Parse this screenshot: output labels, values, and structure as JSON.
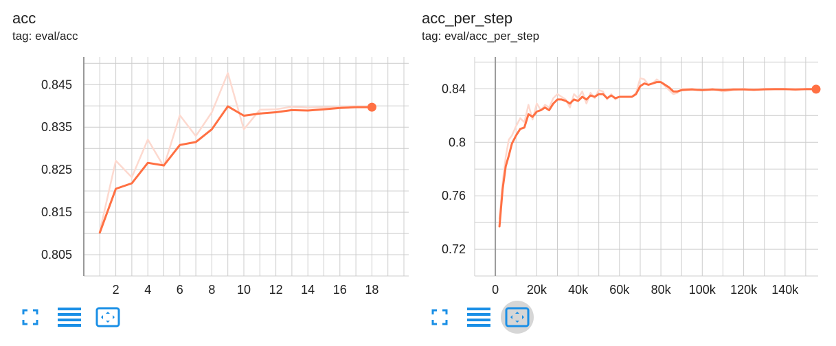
{
  "colors": {
    "accent": "#ff7043",
    "raw_line": "#fdd9cf",
    "grid": "#cccccc",
    "axis": "#999999",
    "icon": "#1a8fe6"
  },
  "charts": [
    {
      "title": "acc",
      "tag": "tag: eval/acc",
      "toolbar": {
        "icons": [
          "fullscreen-icon",
          "data-table-icon",
          "fit-domain-icon"
        ],
        "active_index": -1
      }
    },
    {
      "title": "acc_per_step",
      "tag": "tag: eval/acc_per_step",
      "toolbar": {
        "icons": [
          "fullscreen-icon",
          "data-table-icon",
          "fit-domain-icon"
        ],
        "active_index": 2
      }
    }
  ],
  "chart_data": [
    {
      "type": "line",
      "title": "acc",
      "xlabel": "",
      "ylabel": "",
      "xlim": [
        0,
        20.3
      ],
      "ylim": [
        0.8,
        0.8515
      ],
      "x_ticks": [
        2,
        4,
        6,
        8,
        10,
        12,
        14,
        16,
        18
      ],
      "x_tick_labels": [
        "2",
        "4",
        "6",
        "8",
        "10",
        "12",
        "14",
        "16",
        "18"
      ],
      "y_ticks": [
        0.805,
        0.815,
        0.825,
        0.835,
        0.845
      ],
      "y_tick_labels": [
        "0.805",
        "0.815",
        "0.825",
        "0.835",
        "0.845"
      ],
      "grid": true,
      "series": [
        {
          "role": "raw",
          "x": [
            1,
            2,
            3,
            4,
            5,
            6,
            7,
            8,
            9,
            10,
            11,
            12,
            13,
            14,
            15,
            16,
            17,
            18
          ],
          "values": [
            0.8105,
            0.8271,
            0.8232,
            0.8321,
            0.8257,
            0.8378,
            0.8329,
            0.8385,
            0.8477,
            0.8345,
            0.8391,
            0.8392,
            0.8398,
            0.8396,
            0.8397,
            0.8398,
            0.8399,
            0.8398
          ]
        },
        {
          "role": "smoothed",
          "x": [
            1,
            2,
            3,
            4,
            5,
            6,
            7,
            8,
            9,
            10,
            11,
            12,
            13,
            14,
            15,
            16,
            17,
            18
          ],
          "values": [
            0.8102,
            0.8205,
            0.8218,
            0.8266,
            0.826,
            0.8308,
            0.8315,
            0.8345,
            0.8399,
            0.8377,
            0.8382,
            0.8385,
            0.839,
            0.8389,
            0.8392,
            0.8395,
            0.8397,
            0.8397
          ]
        }
      ]
    },
    {
      "type": "line",
      "title": "acc_per_step",
      "xlabel": "",
      "ylabel": "",
      "xlim": [
        -10000,
        156000
      ],
      "ylim": [
        0.7,
        0.8638
      ],
      "x_ticks": [
        0,
        20000,
        40000,
        60000,
        80000,
        100000,
        120000,
        140000
      ],
      "x_tick_labels": [
        "0",
        "20k",
        "40k",
        "60k",
        "80k",
        "100k",
        "120k",
        "140k"
      ],
      "y_ticks": [
        0.72,
        0.76,
        0.8,
        0.84
      ],
      "y_tick_labels": [
        "0.72",
        "0.76",
        "0.8",
        "0.84"
      ],
      "grid": true,
      "series": [
        {
          "role": "raw",
          "x": [
            2000,
            3500,
            5000,
            6500,
            8000,
            10000,
            12000,
            14000,
            16000,
            18000,
            20000,
            22000,
            24000,
            26000,
            28000,
            30000,
            32000,
            34000,
            36000,
            38000,
            40000,
            42000,
            44000,
            46000,
            48000,
            50000,
            52000,
            54000,
            56000,
            58000,
            60000,
            62000,
            64000,
            66000,
            68000,
            70000,
            72000,
            74000,
            76000,
            78000,
            80000,
            82000,
            84000,
            86000,
            88000,
            90000,
            95000,
            100000,
            105000,
            110000,
            115000,
            120000,
            125000,
            130000,
            135000,
            140000,
            145000,
            150000,
            155000
          ],
          "values": [
            0.743,
            0.77,
            0.789,
            0.802,
            0.805,
            0.812,
            0.818,
            0.815,
            0.828,
            0.817,
            0.829,
            0.824,
            0.828,
            0.826,
            0.833,
            0.836,
            0.834,
            0.832,
            0.826,
            0.836,
            0.833,
            0.838,
            0.829,
            0.837,
            0.833,
            0.839,
            0.838,
            0.832,
            0.836,
            0.832,
            0.834,
            0.834,
            0.834,
            0.834,
            0.837,
            0.848,
            0.847,
            0.843,
            0.844,
            0.847,
            0.845,
            0.842,
            0.839,
            0.836,
            0.837,
            0.84,
            0.84,
            0.839,
            0.84,
            0.838,
            0.839,
            0.84,
            0.839,
            0.84,
            0.84,
            0.84,
            0.839,
            0.84,
            0.84
          ]
        },
        {
          "role": "smoothed",
          "x": [
            2000,
            3500,
            5000,
            6500,
            8000,
            10000,
            12000,
            14000,
            16000,
            18000,
            20000,
            22000,
            24000,
            26000,
            28000,
            30000,
            32000,
            34000,
            36000,
            38000,
            40000,
            42000,
            44000,
            46000,
            48000,
            50000,
            52000,
            54000,
            56000,
            58000,
            60000,
            62000,
            64000,
            66000,
            68000,
            70000,
            72000,
            74000,
            76000,
            78000,
            80000,
            82000,
            84000,
            86000,
            88000,
            90000,
            95000,
            100000,
            105000,
            110000,
            115000,
            120000,
            125000,
            130000,
            135000,
            140000,
            145000,
            150000,
            155000
          ],
          "values": [
            0.737,
            0.765,
            0.782,
            0.79,
            0.799,
            0.805,
            0.81,
            0.811,
            0.821,
            0.819,
            0.823,
            0.824,
            0.826,
            0.824,
            0.829,
            0.832,
            0.832,
            0.831,
            0.829,
            0.832,
            0.831,
            0.834,
            0.832,
            0.835,
            0.834,
            0.836,
            0.836,
            0.833,
            0.835,
            0.833,
            0.834,
            0.834,
            0.834,
            0.834,
            0.836,
            0.842,
            0.844,
            0.843,
            0.844,
            0.845,
            0.845,
            0.843,
            0.841,
            0.838,
            0.838,
            0.839,
            0.8395,
            0.839,
            0.8395,
            0.839,
            0.8395,
            0.8395,
            0.8393,
            0.8396,
            0.8397,
            0.8397,
            0.8395,
            0.8397,
            0.8397
          ]
        }
      ]
    }
  ]
}
